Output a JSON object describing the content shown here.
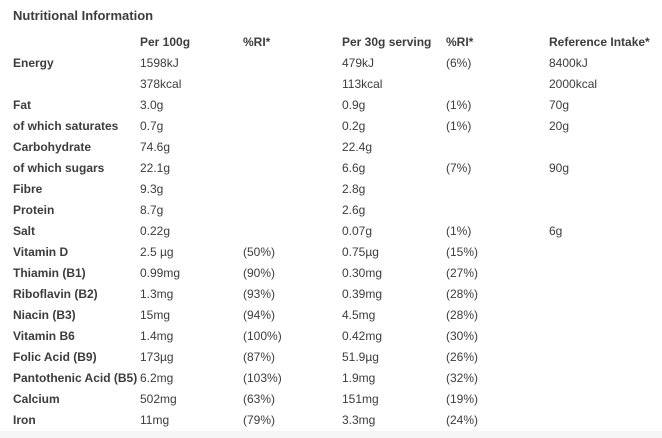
{
  "page": {
    "title": "Nutritional Information"
  },
  "table": {
    "columns": [
      "Per 100g",
      "%RI*",
      "Per 30g serving",
      "%RI*",
      "Reference Intake*"
    ],
    "rows": [
      {
        "label": "Energy",
        "per_100g": "1598kJ",
        "ri_100g": "",
        "per_30g": "479kJ",
        "ri_30g": "(6%)",
        "reference_intake": "8400kJ"
      },
      {
        "label": "",
        "per_100g": "378kcal",
        "ri_100g": "",
        "per_30g": "113kcal",
        "ri_30g": "",
        "reference_intake": "2000kcal"
      },
      {
        "label": "Fat",
        "per_100g": "3.0g",
        "ri_100g": "",
        "per_30g": "0.9g",
        "ri_30g": "(1%)",
        "reference_intake": "70g"
      },
      {
        "label": "of which saturates",
        "per_100g": "0.7g",
        "ri_100g": "",
        "per_30g": "0.2g",
        "ri_30g": "(1%)",
        "reference_intake": "20g"
      },
      {
        "label": "Carbohydrate",
        "per_100g": "74.6g",
        "ri_100g": "",
        "per_30g": "22.4g",
        "ri_30g": "",
        "reference_intake": ""
      },
      {
        "label": "of which sugars",
        "per_100g": "22.1g",
        "ri_100g": "",
        "per_30g": "6.6g",
        "ri_30g": "(7%)",
        "reference_intake": "90g"
      },
      {
        "label": "Fibre",
        "per_100g": "9.3g",
        "ri_100g": "",
        "per_30g": "2.8g",
        "ri_30g": "",
        "reference_intake": ""
      },
      {
        "label": "Protein",
        "per_100g": "8.7g",
        "ri_100g": "",
        "per_30g": "2.6g",
        "ri_30g": "",
        "reference_intake": ""
      },
      {
        "label": "Salt",
        "per_100g": "0.22g",
        "ri_100g": "",
        "per_30g": "0.07g",
        "ri_30g": "(1%)",
        "reference_intake": "6g"
      },
      {
        "label": "Vitamin D",
        "per_100g": "2.5 µg",
        "ri_100g": "(50%)",
        "per_30g": "0.75µg",
        "ri_30g": "(15%)",
        "reference_intake": ""
      },
      {
        "label": "Thiamin (B1)",
        "per_100g": "0.99mg",
        "ri_100g": "(90%)",
        "per_30g": "0.30mg",
        "ri_30g": "(27%)",
        "reference_intake": ""
      },
      {
        "label": "Riboflavin (B2)",
        "per_100g": "1.3mg",
        "ri_100g": "(93%)",
        "per_30g": "0.39mg",
        "ri_30g": "(28%)",
        "reference_intake": ""
      },
      {
        "label": "Niacin (B3)",
        "per_100g": "15mg",
        "ri_100g": "(94%)",
        "per_30g": "4.5mg",
        "ri_30g": "(28%)",
        "reference_intake": ""
      },
      {
        "label": "Vitamin B6",
        "per_100g": "1.4mg",
        "ri_100g": "(100%)",
        "per_30g": "0.42mg",
        "ri_30g": "(30%)",
        "reference_intake": ""
      },
      {
        "label": "Folic Acid (B9)",
        "per_100g": "173µg",
        "ri_100g": "(87%)",
        "per_30g": "51.9µg",
        "ri_30g": "(26%)",
        "reference_intake": ""
      },
      {
        "label": "Pantothenic Acid (B5)",
        "per_100g": "6.2mg",
        "ri_100g": "(103%)",
        "per_30g": "1.9mg",
        "ri_30g": "(32%)",
        "reference_intake": ""
      },
      {
        "label": "Calcium",
        "per_100g": "502mg",
        "ri_100g": "(63%)",
        "per_30g": "151mg",
        "ri_30g": "(19%)",
        "reference_intake": ""
      },
      {
        "label": "Iron",
        "per_100g": "11mg",
        "ri_100g": "(79%)",
        "per_30g": "3.3mg",
        "ri_30g": "(24%)",
        "reference_intake": ""
      }
    ]
  },
  "colors": {
    "text": "#3c3c3c",
    "footer_strip": "#f5f5f5",
    "background": "#ffffff"
  }
}
